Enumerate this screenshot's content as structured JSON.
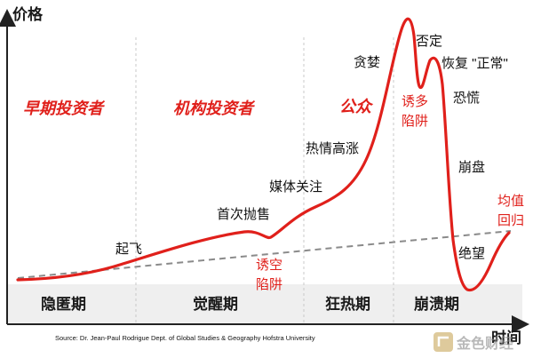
{
  "axes": {
    "y_title": "价格",
    "x_title": "时间"
  },
  "investor_groups": [
    "早期投资者",
    "机构投资者",
    "公众"
  ],
  "phases": [
    "隐匿期",
    "觉醒期",
    "狂热期",
    "崩溃期"
  ],
  "stage_labels": {
    "takeoff": "起飞",
    "first_selloff": "首次抛售",
    "bear_trap_1": "诱空",
    "bear_trap_2": "陷阱",
    "media_attention": "媒体关注",
    "enthusiasm": "热情高涨",
    "greed": "贪婪",
    "denial": "否定",
    "return_normal": "恢复 \"正常\"",
    "bull_trap_1": "诱多",
    "bull_trap_2": "陷阱",
    "fear": "恐慌",
    "capitulation": "崩盘",
    "despair": "绝望",
    "mean_reversion_1": "均值",
    "mean_reversion_2": "回归"
  },
  "source": "Source: Dr. Jean-Paul Rodrigue Dept. of Global Studies & Geography Hofstra University",
  "watermark": "金色财经",
  "colors": {
    "curve": "#e0201b",
    "trend": "#8a8a8a",
    "axis": "#222222",
    "divider": "#c8c8c8",
    "bottom_band": "#efefef"
  }
}
